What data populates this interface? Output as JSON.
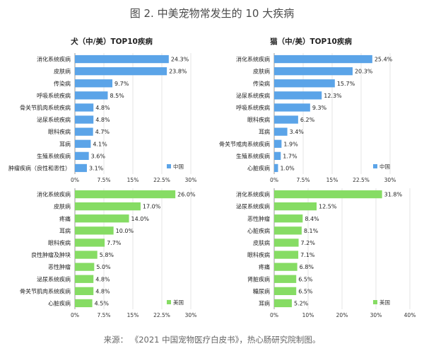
{
  "figure": {
    "title": "图 2. 中美宠物常发生的 10 大疾病",
    "source": "来源：  《2021 中国宠物医疗白皮书》，热心肠研究院制图。"
  },
  "colors": {
    "china": "#5ba4e8",
    "usa": "#86dc64"
  },
  "chart_data": [
    {
      "type": "bar",
      "orientation": "horizontal",
      "title": "犬（中/美）TOP10疾病",
      "legend": "中国",
      "legend_position": "bottom-right",
      "series_color": "china",
      "categories": [
        "消化系统疾病",
        "皮肤病",
        "传染病",
        "呼吸系统疾病",
        "骨关节肌肉系统疾病",
        "泌尿系统疾病",
        "眼科疾病",
        "耳病",
        "生殖系统疾病",
        "肿瘤疾病（良性和恶性）"
      ],
      "values": [
        24.3,
        23.8,
        9.7,
        8.5,
        4.8,
        4.8,
        4.7,
        4.1,
        3.6,
        3.1
      ],
      "value_labels": [
        "24.3%",
        "23.8%",
        "9.7%",
        "8.5%",
        "4.8%",
        "4.8%",
        "4.7%",
        "4.1%",
        "3.6%",
        "3.1%"
      ],
      "xlim": [
        0,
        30
      ],
      "xticks": [
        0,
        7.5,
        15,
        22.5,
        30
      ],
      "xtick_labels": [
        "0%",
        "7.5%",
        "15%",
        "22.5%",
        "30%"
      ],
      "grid": true
    },
    {
      "type": "bar",
      "orientation": "horizontal",
      "title": "猫（中/美）TOP10疾病",
      "legend": "中国",
      "legend_position": "bottom-right",
      "series_color": "china",
      "categories": [
        "消化系统疾病",
        "皮肤病",
        "传染病",
        "泌尿系统疾病",
        "呼吸系统疾病",
        "眼科疾病",
        "耳病",
        "骨关节戒肉系统疾病",
        "生殖系统疾病",
        "心脏疾病"
      ],
      "values": [
        25.4,
        20.3,
        15.7,
        12.3,
        9.3,
        6.2,
        3.4,
        1.9,
        1.7,
        1.0
      ],
      "value_labels": [
        "25.4%",
        "20.3%",
        "15.7%",
        "12.3%",
        "9.3%",
        "6.2%",
        "3.4%",
        "1.9%",
        "1.7%",
        "1.0%"
      ],
      "xlim": [
        0,
        30
      ],
      "xticks": [
        0,
        7.5,
        15,
        22.5,
        30
      ],
      "xtick_labels": [
        "0%",
        "7.5%",
        "15%",
        "22.5%",
        "30%"
      ],
      "grid": true
    },
    {
      "type": "bar",
      "orientation": "horizontal",
      "title": "",
      "legend": "美国",
      "legend_position": "bottom-right",
      "series_color": "usa",
      "categories": [
        "消化系统疾病",
        "皮肤病",
        "疼痛",
        "耳病",
        "眼科疾病",
        "良性肿瘤及肿块",
        "恶性肿瘤",
        "泌尿系统疾病",
        "骨关节肌肉系统疾病",
        "心脏疾病"
      ],
      "values": [
        26.0,
        17.0,
        14.0,
        10.0,
        7.7,
        5.8,
        5.0,
        4.8,
        4.8,
        4.5
      ],
      "value_labels": [
        "26.0%",
        "17.0%",
        "14.0%",
        "10.0%",
        "7.7%",
        "5.8%",
        "5.0%",
        "4.8%",
        "4.8%",
        "4.5%"
      ],
      "xlim": [
        0,
        30
      ],
      "xticks": [
        0,
        7.5,
        15,
        22.5,
        30
      ],
      "xtick_labels": [
        "0%",
        "7.5%",
        "15%",
        "22.5%",
        "30%"
      ],
      "grid": true
    },
    {
      "type": "bar",
      "orientation": "horizontal",
      "title": "",
      "legend": "美国",
      "legend_position": "bottom-right",
      "series_color": "usa",
      "categories": [
        "消化系统疾病",
        "泌尿系统疾病",
        "恶性肿瘤",
        "心脏疾病",
        "皮肤病",
        "眼科疾病",
        "疼痛",
        "肾脏疾病",
        "糖尿病",
        "耳病"
      ],
      "values": [
        31.8,
        12.5,
        8.4,
        8.1,
        7.2,
        7.1,
        6.8,
        6.5,
        6.5,
        5.2
      ],
      "value_labels": [
        "31.8%",
        "12.5%",
        "8.4%",
        "8.1%",
        "7.2%",
        "7.1%",
        "6.8%",
        "6.5%",
        "6.5%",
        "5.2%"
      ],
      "xlim": [
        0,
        40
      ],
      "xticks": [
        0,
        10,
        20,
        30,
        40
      ],
      "xtick_labels": [
        "0%",
        "10%",
        "20%",
        "30%",
        "40%"
      ],
      "grid": true
    }
  ]
}
